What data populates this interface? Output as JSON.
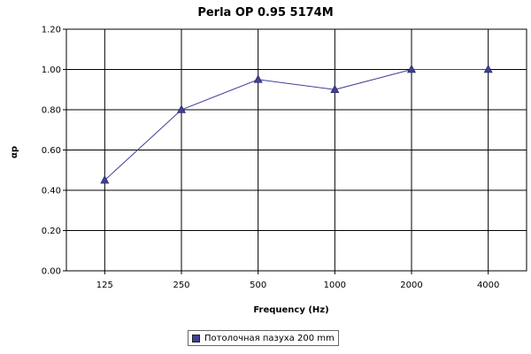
{
  "chart_data": {
    "type": "line",
    "title": "Perla OP 0.95 5174M",
    "xlabel": "Frequency (Hz)",
    "ylabel": "αp",
    "categories": [
      "125",
      "250",
      "500",
      "1000",
      "2000",
      "4000"
    ],
    "series": [
      {
        "name": "Потолочная пазуха 200 mm",
        "values": [
          0.45,
          0.8,
          0.95,
          0.9,
          1.0,
          1.0
        ]
      }
    ],
    "ylim": [
      0,
      1.2
    ],
    "yticks": [
      "0.00",
      "0.20",
      "0.40",
      "0.60",
      "0.80",
      "1.00",
      "1.20"
    ],
    "grid": true,
    "legend_position": "bottom",
    "colors": {
      "series": "#3f3f99",
      "grid": "#000000"
    }
  }
}
